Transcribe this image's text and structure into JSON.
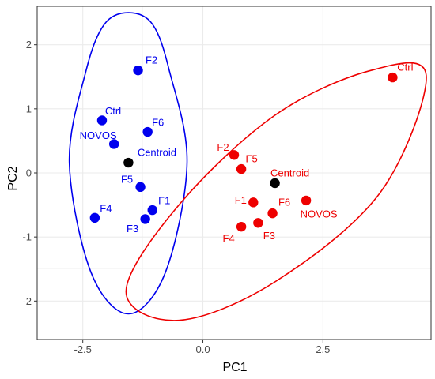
{
  "chart_data": {
    "type": "scatter",
    "xlabel": "PC1",
    "ylabel": "PC2",
    "xlim": [
      -3.45,
      4.75
    ],
    "ylim": [
      -2.6,
      2.6
    ],
    "xticks": [
      -2.5,
      0.0,
      2.5
    ],
    "xtick_labels": [
      "-2.5",
      "0.0",
      "2.5"
    ],
    "yticks": [
      -2,
      -1,
      0,
      1,
      2
    ],
    "ytick_labels": [
      "-2",
      "-1",
      "0",
      "1",
      "2"
    ],
    "grid": true,
    "colors": {
      "blue": "#0000EE",
      "red": "#EE0000",
      "centroid": "#000000"
    },
    "series": [
      {
        "color": "#0000EE",
        "points": [
          {
            "label": "F2",
            "x": -1.35,
            "y": 1.6
          },
          {
            "label": "Ctrl",
            "x": -2.1,
            "y": 0.82
          },
          {
            "label": "F6",
            "x": -1.15,
            "y": 0.64
          },
          {
            "label": "NOVOS",
            "x": -1.85,
            "y": 0.45
          },
          {
            "label": "F5",
            "x": -1.3,
            "y": -0.22
          },
          {
            "label": "F1",
            "x": -1.05,
            "y": -0.58
          },
          {
            "label": "F4",
            "x": -2.25,
            "y": -0.7
          },
          {
            "label": "F3",
            "x": -1.2,
            "y": -0.72
          }
        ],
        "centroid": {
          "label": "Centroid",
          "x": -1.55,
          "y": 0.16
        },
        "ellipse": [
          {
            "x": -1.55,
            "y": 2.5
          },
          {
            "x": -1.05,
            "y": 2.32
          },
          {
            "x": -0.7,
            "y": 1.6
          },
          {
            "x": -0.33,
            "y": 0.16
          },
          {
            "x": -0.78,
            "y": -1.55
          },
          {
            "x": -1.55,
            "y": -2.2
          },
          {
            "x": -2.33,
            "y": -1.55
          },
          {
            "x": -2.78,
            "y": 0.16
          },
          {
            "x": -2.43,
            "y": 1.6
          },
          {
            "x": -2.05,
            "y": 2.32
          }
        ]
      },
      {
        "color": "#EE0000",
        "points": [
          {
            "label": "Ctrl",
            "x": 3.95,
            "y": 1.49
          },
          {
            "label": "F2",
            "x": 0.65,
            "y": 0.28
          },
          {
            "label": "F5",
            "x": 0.8,
            "y": 0.06
          },
          {
            "label": "F1",
            "x": 1.05,
            "y": -0.46
          },
          {
            "label": "F6",
            "x": 1.45,
            "y": -0.63
          },
          {
            "label": "NOVOS",
            "x": 2.15,
            "y": -0.43
          },
          {
            "label": "F4",
            "x": 0.8,
            "y": -0.84
          },
          {
            "label": "F3",
            "x": 1.15,
            "y": -0.78
          }
        ],
        "centroid": {
          "label": "Centroid",
          "x": 1.5,
          "y": -0.16
        },
        "ellipse": [
          {
            "x": 4.65,
            "y": 1.52
          },
          {
            "x": 3.5,
            "y": 1.6
          },
          {
            "x": 1.5,
            "y": 0.9
          },
          {
            "x": -0.5,
            "y": -0.5
          },
          {
            "x": -1.6,
            "y": -1.85
          },
          {
            "x": -0.5,
            "y": -2.3
          },
          {
            "x": 1.5,
            "y": -1.7
          },
          {
            "x": 3.7,
            "y": -0.3
          }
        ]
      }
    ]
  }
}
